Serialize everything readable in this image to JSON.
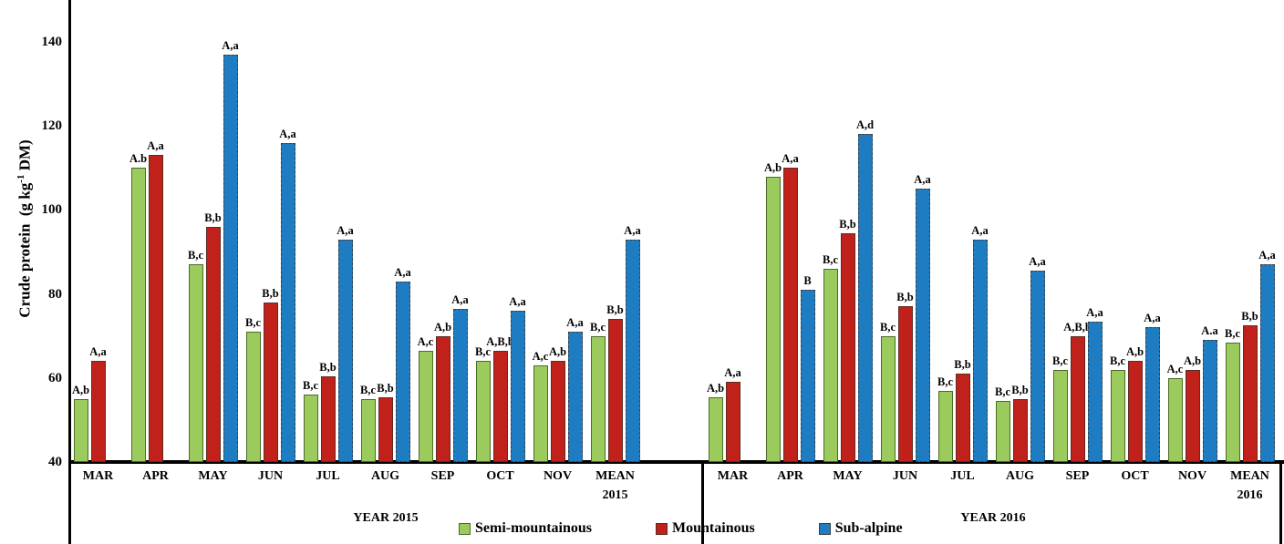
{
  "chart_data": {
    "type": "bar",
    "title": "",
    "ylabel": "Crude protein (g kg⁻¹ DM)",
    "ylabel_parts": {
      "pre": "Crude protein  (g kg",
      "sup": "-1",
      "post": " DM)"
    },
    "ylim": [
      40,
      150
    ],
    "yticks": [
      40,
      60,
      80,
      100,
      120,
      140
    ],
    "grid": false,
    "legend_position": "bottom",
    "series_names": [
      "Semi-mountainous",
      "Mountainous",
      "Sub-alpine"
    ],
    "colors": {
      "semi_mountainous": "#9BCB5C",
      "mountainous": "#C1211B",
      "sub_alpine": "#1E7CC2"
    },
    "panels": [
      {
        "axis_title": "YEAR 2015",
        "categories": [
          "MAR",
          "APR",
          "MAY",
          "JUN",
          "JUL",
          "AUG",
          "SEP",
          "OCT",
          "NOV",
          "MEAN\n2015"
        ],
        "series": [
          {
            "name": "Semi-mountainous",
            "values": [
              55,
              110,
              87,
              71,
              56,
              55,
              66.5,
              64,
              63,
              70
            ],
            "sig_labels": [
              "A,b",
              "A.b",
              "B,c",
              "B,c",
              "B,c",
              "B,c",
              "A,c",
              "B,c",
              "A,c",
              "B,c"
            ]
          },
          {
            "name": "Mountainous",
            "values": [
              64,
              113,
              96,
              78,
              60.5,
              55.5,
              70,
              66.5,
              64,
              74
            ],
            "sig_labels": [
              "A,a",
              "A,a",
              "B,b",
              "B,b",
              "B,b",
              "B,b",
              "A,b",
              "A,B,b",
              "A,b",
              "B,b"
            ]
          },
          {
            "name": "Sub-alpine",
            "values": [
              null,
              null,
              137,
              116,
              93,
              83,
              76.5,
              76,
              71,
              93
            ],
            "sig_labels": [
              null,
              null,
              "A,a",
              "A,a",
              "A,a",
              "A,a",
              "A,a",
              "A,a",
              "A,a",
              "A,a"
            ]
          }
        ]
      },
      {
        "axis_title": "YEAR 2016",
        "categories": [
          "MAR",
          "APR",
          "MAY",
          "JUN",
          "JUL",
          "AUG",
          "SEP",
          "OCT",
          "NOV",
          "MEAN\n2016"
        ],
        "series": [
          {
            "name": "Semi-mountainous",
            "values": [
              55.5,
              108,
              86,
              70,
              57,
              54.5,
              62,
              62,
              60,
              68.5
            ],
            "sig_labels": [
              "A,b",
              "A,b",
              "B,c",
              "B,c",
              "B,c",
              "B,c",
              "B,c",
              "B,c",
              "A,c",
              "B,c"
            ]
          },
          {
            "name": "Mountainous",
            "values": [
              59,
              110,
              94.5,
              77,
              61,
              55,
              70,
              64,
              62,
              72.5
            ],
            "sig_labels": [
              "A,a",
              "A,a",
              "B,b",
              "B,b",
              "B,b",
              "B,b",
              "A,B,b",
              "A,b",
              "A,b",
              "B,b"
            ]
          },
          {
            "name": "Sub-alpine",
            "values": [
              null,
              81,
              118,
              105,
              93,
              85.5,
              73.5,
              72,
              69,
              87
            ],
            "sig_labels": [
              null,
              "B",
              "A,d",
              "A,a",
              "A,a",
              "A,a",
              "A,a",
              "A,a",
              "A.a",
              "A,a"
            ]
          }
        ]
      }
    ]
  }
}
